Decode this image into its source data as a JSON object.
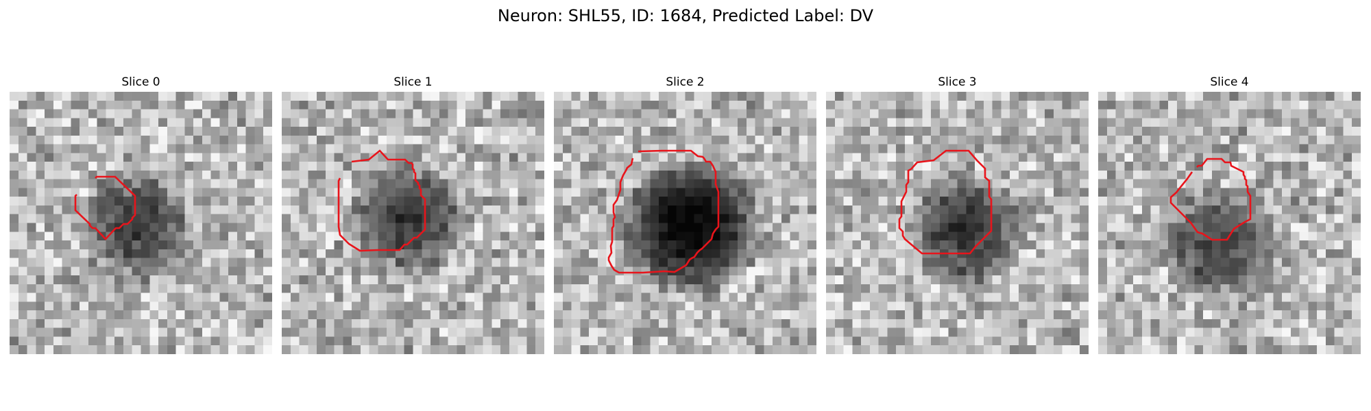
{
  "figure": {
    "title": "Neuron: SHL55, ID: 1684, Predicted Label: DV"
  },
  "slices": [
    {
      "title": "Slice 0",
      "cell_center": [
        0.48,
        0.51
      ],
      "darkness": 0.55,
      "contour_color": "#e8141b"
    },
    {
      "title": "Slice 1",
      "cell_center": [
        0.48,
        0.48
      ],
      "darkness": 0.6,
      "contour_color": "#e8141b"
    },
    {
      "title": "Slice 2",
      "cell_center": [
        0.52,
        0.51
      ],
      "darkness": 0.9,
      "contour_color": "#e8141b"
    },
    {
      "title": "Slice 3",
      "cell_center": [
        0.53,
        0.53
      ],
      "darkness": 0.62,
      "contour_color": "#e8141b"
    },
    {
      "title": "Slice 4",
      "cell_center": [
        0.46,
        0.58
      ],
      "darkness": 0.55,
      "contour_color": "#e8141b"
    }
  ]
}
